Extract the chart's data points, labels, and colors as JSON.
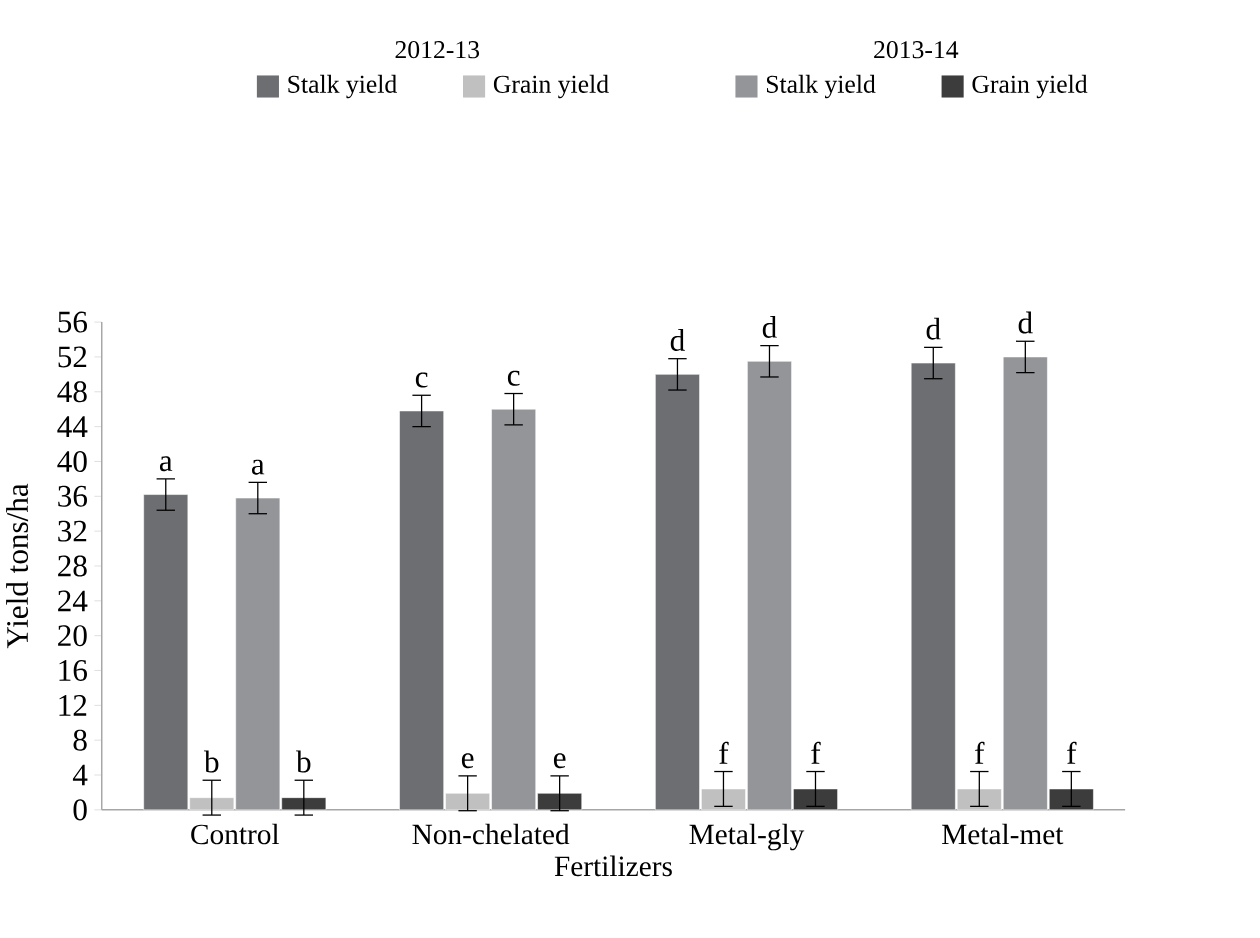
{
  "chart_data": {
    "type": "bar",
    "xlabel": "Fertilizers",
    "ylabel": "Yield tons/ha",
    "categories": [
      "Control",
      "Non-chelated",
      "Metal-gly",
      "Metal-met"
    ],
    "series": [
      {
        "name": "Stalk yield",
        "color": "#6d6e71",
        "values": [
          36.2,
          45.8,
          50.0,
          51.3
        ],
        "errors": [
          1.8,
          1.8,
          1.8,
          1.8
        ]
      },
      {
        "name": "Grain yield",
        "color": "#c0c0c0",
        "values": [
          1.4,
          1.9,
          2.4,
          2.4
        ],
        "errors": [
          2.0,
          2.0,
          2.0,
          2.0
        ]
      },
      {
        "name": "Stalk yield",
        "color": "#939598",
        "values": [
          35.8,
          46.0,
          51.5,
          52.0
        ],
        "errors": [
          1.8,
          1.8,
          1.8,
          1.8
        ]
      },
      {
        "name": "Grain yield",
        "color": "#3c3c3c",
        "values": [
          1.4,
          1.9,
          2.4,
          2.4
        ],
        "errors": [
          2.0,
          2.0,
          2.0,
          2.0
        ]
      }
    ],
    "ylim": [
      0,
      56
    ],
    "yticks": [
      0,
      4,
      8,
      12,
      16,
      20,
      24,
      28,
      32,
      36,
      40,
      44,
      48,
      52,
      56
    ],
    "grid": false,
    "legend": "top",
    "annotations": [
      "2012-13",
      "2013-14",
      "a",
      "b",
      "a",
      "b",
      "c",
      "e",
      "c",
      "e",
      "d",
      "f",
      "d",
      "f",
      "d",
      "f",
      "d",
      "f"
    ]
  }
}
